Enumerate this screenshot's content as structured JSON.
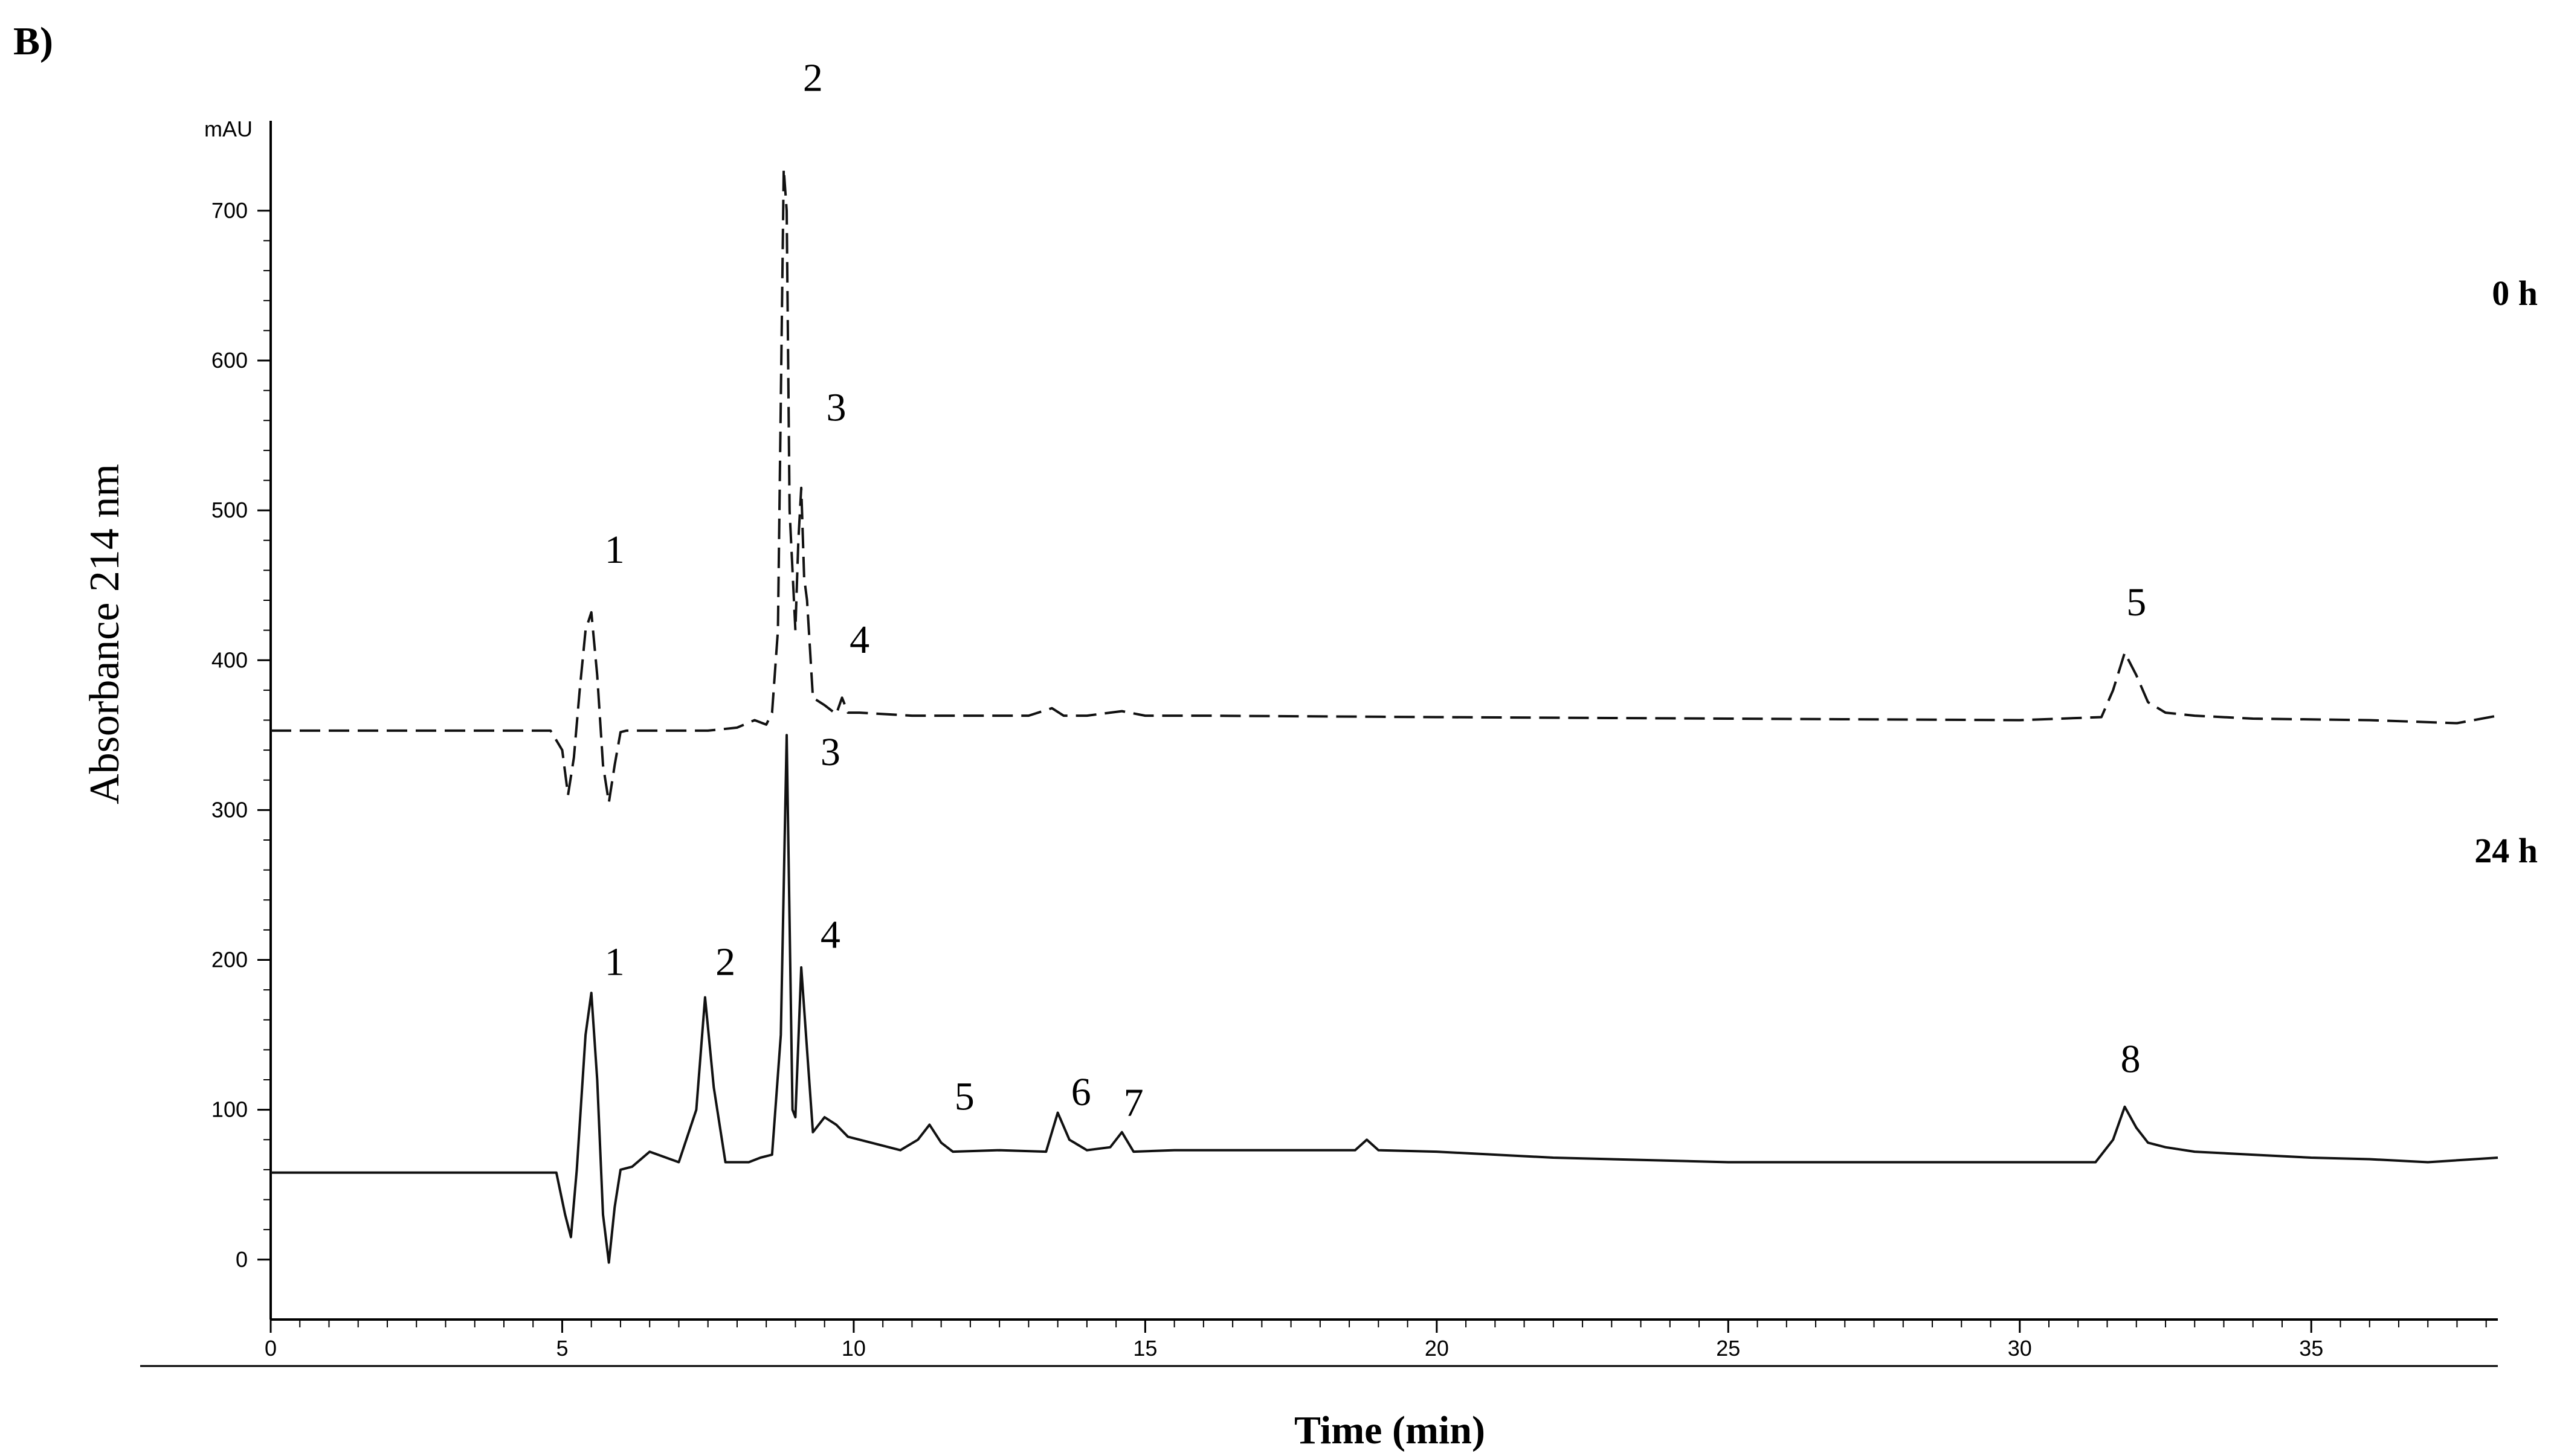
{
  "panel_label": "B)",
  "chart_data": {
    "type": "line",
    "title": "",
    "xlabel": "Time (min)",
    "ylabel": "Absorbance 214 nm",
    "yunit": "mAU",
    "xlim": [
      0,
      38.2
    ],
    "ylim": [
      -40,
      760
    ],
    "xticks": [
      0,
      5,
      10,
      15,
      20,
      25,
      30,
      35
    ],
    "yticks": [
      0,
      100,
      200,
      300,
      400,
      500,
      600,
      700
    ],
    "grid": false,
    "series": [
      {
        "name": "0 h",
        "style": "dashed",
        "color": "#111111",
        "x": [
          0,
          4.8,
          5.0,
          5.1,
          5.2,
          5.3,
          5.4,
          5.5,
          5.6,
          5.7,
          5.8,
          5.9,
          6.0,
          6.1,
          7.5,
          8.0,
          8.3,
          8.5,
          8.6,
          8.7,
          8.8,
          8.85,
          8.9,
          9.0,
          9.05,
          9.1,
          9.15,
          9.2,
          9.3,
          9.5,
          9.7,
          9.8,
          9.9,
          10.1,
          11,
          13,
          13.4,
          13.6,
          14,
          14.6,
          15,
          16,
          20,
          25,
          30,
          31.4,
          31.6,
          31.8,
          32.0,
          32.2,
          32.5,
          33,
          34,
          36,
          37.5,
          38.2
        ],
        "y": [
          353,
          353,
          340,
          310,
          335,
          380,
          420,
          432,
          390,
          330,
          305,
          330,
          352,
          353,
          353,
          355,
          360,
          357,
          365,
          420,
          728,
          700,
          500,
          420,
          480,
          515,
          455,
          440,
          375,
          370,
          364,
          375,
          365,
          365,
          363,
          363,
          368,
          363,
          363,
          366,
          363,
          363,
          362,
          361,
          360,
          362,
          380,
          405,
          390,
          372,
          365,
          363,
          361,
          360,
          358,
          363
        ]
      },
      {
        "name": "24 h",
        "style": "solid",
        "color": "#111111",
        "x": [
          0,
          4.9,
          5.05,
          5.15,
          5.25,
          5.4,
          5.5,
          5.6,
          5.7,
          5.8,
          5.9,
          6.0,
          6.2,
          6.5,
          7.0,
          7.3,
          7.45,
          7.6,
          7.8,
          8.2,
          8.4,
          8.6,
          8.75,
          8.85,
          8.95,
          9.0,
          9.1,
          9.2,
          9.3,
          9.5,
          9.7,
          9.9,
          10.3,
          10.8,
          11.1,
          11.3,
          11.5,
          11.7,
          12.5,
          13.3,
          13.5,
          13.7,
          14,
          14.4,
          14.6,
          14.8,
          15.5,
          18.6,
          18.8,
          19,
          20,
          22,
          25,
          28,
          31.3,
          31.6,
          31.8,
          32.0,
          32.2,
          32.5,
          33,
          34,
          35,
          36,
          37,
          38.2
        ],
        "y": [
          58,
          58,
          30,
          15,
          60,
          150,
          178,
          120,
          30,
          -2,
          35,
          60,
          62,
          72,
          65,
          100,
          175,
          115,
          65,
          65,
          68,
          70,
          150,
          350,
          100,
          95,
          195,
          140,
          85,
          95,
          90,
          82,
          78,
          73,
          80,
          90,
          78,
          72,
          73,
          72,
          98,
          80,
          73,
          75,
          85,
          72,
          73,
          73,
          80,
          73,
          72,
          68,
          65,
          65,
          65,
          80,
          102,
          88,
          78,
          75,
          72,
          70,
          68,
          67,
          65,
          68
        ]
      }
    ],
    "peak_labels": [
      {
        "series": "0 h",
        "text": "1",
        "x": 5.9,
        "y": 465
      },
      {
        "series": "0 h",
        "text": "2",
        "x": 9.3,
        "y": 780
      },
      {
        "series": "0 h",
        "text": "3",
        "x": 9.7,
        "y": 560
      },
      {
        "series": "0 h",
        "text": "4",
        "x": 10.1,
        "y": 405
      },
      {
        "series": "0 h",
        "text": "5",
        "x": 32.0,
        "y": 430
      },
      {
        "series": "24 h",
        "text": "1",
        "x": 5.9,
        "y": 190
      },
      {
        "series": "24 h",
        "text": "2",
        "x": 7.8,
        "y": 190
      },
      {
        "series": "24 h",
        "text": "3",
        "x": 9.6,
        "y": 330
      },
      {
        "series": "24 h",
        "text": "4",
        "x": 9.6,
        "y": 208
      },
      {
        "series": "24 h",
        "text": "5",
        "x": 11.9,
        "y": 100
      },
      {
        "series": "24 h",
        "text": "6",
        "x": 13.9,
        "y": 103
      },
      {
        "series": "24 h",
        "text": "7",
        "x": 14.8,
        "y": 96
      },
      {
        "series": "24 h",
        "text": "8",
        "x": 31.9,
        "y": 125
      }
    ],
    "legend": [
      {
        "text": "0 h",
        "y": 637
      },
      {
        "text": "24 h",
        "y": 265
      }
    ]
  }
}
